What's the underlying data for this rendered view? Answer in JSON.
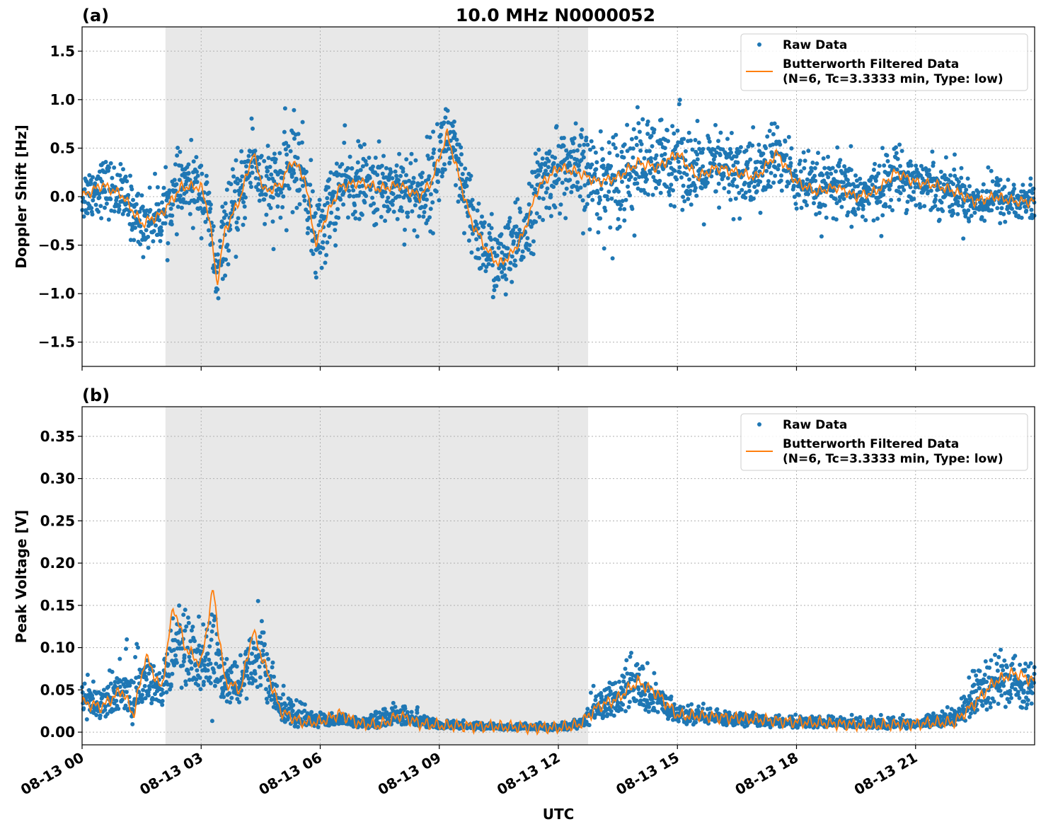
{
  "figure": {
    "title": "10.0 MHz N0000052",
    "xlabel": "UTC",
    "colors": {
      "raw": "#1f77b4",
      "filtered": "#ff7f0e",
      "shade": "#e8e8e8",
      "grid": "#b0b0b0"
    }
  },
  "chart_data": [
    {
      "type": "scatter",
      "panel_label": "(a)",
      "ylabel": "Doppler Shift [Hz]",
      "xlim": [
        0,
        24
      ],
      "ylim": [
        -1.75,
        1.75
      ],
      "x_ticks": [
        0,
        3,
        6,
        9,
        12,
        15,
        18,
        21
      ],
      "x_tick_labels": [
        "08-13 00",
        "08-13 03",
        "08-13 06",
        "08-13 09",
        "08-13 12",
        "08-13 15",
        "08-13 18",
        "08-13 21"
      ],
      "y_ticks": [
        -1.5,
        -1.0,
        -0.5,
        0.0,
        0.5,
        1.0,
        1.5
      ],
      "y_tick_labels": [
        "−1.5",
        "−1.0",
        "−0.5",
        "0.0",
        "0.5",
        "1.0",
        "1.5"
      ],
      "shaded_x": [
        2.1,
        12.75
      ],
      "grid": true,
      "legend": {
        "placement": "top-right",
        "raw_label": "Raw Data",
        "filtered_label_1": "Butterworth Filtered Data",
        "filtered_label_2": "(N=6, Tc=3.3333 min, Type: low)"
      },
      "series": [
        {
          "name": "Butterworth Filtered Data",
          "x": [
            0,
            0.5,
            1,
            1.5,
            2,
            2.5,
            3,
            3.2,
            3.4,
            3.6,
            4,
            4.3,
            4.6,
            5,
            5.3,
            5.6,
            5.9,
            6.1,
            6.5,
            7,
            7.5,
            8,
            8.5,
            8.8,
            9.2,
            9.5,
            9.8,
            10.2,
            10.5,
            10.8,
            11.1,
            11.5,
            12,
            12.5,
            13,
            13.5,
            14,
            14.5,
            15,
            15.5,
            16,
            16.5,
            17,
            17.5,
            18,
            18.5,
            19,
            19.5,
            20,
            20.5,
            21,
            21.5,
            22,
            22.5,
            23,
            23.5,
            24
          ],
          "y": [
            0.0,
            0.12,
            0.02,
            -0.28,
            -0.18,
            0.1,
            0.1,
            -0.2,
            -0.9,
            -0.35,
            0.0,
            0.45,
            0.05,
            0.12,
            0.38,
            0.2,
            -0.5,
            -0.25,
            0.1,
            0.15,
            0.08,
            0.12,
            0.0,
            0.15,
            0.65,
            0.2,
            -0.25,
            -0.55,
            -0.7,
            -0.6,
            -0.4,
            0.1,
            0.3,
            0.25,
            0.15,
            0.2,
            0.35,
            0.3,
            0.45,
            0.2,
            0.3,
            0.25,
            0.2,
            0.45,
            0.15,
            0.05,
            0.1,
            0.0,
            0.05,
            0.25,
            0.15,
            0.12,
            0.05,
            -0.05,
            0.0,
            -0.05,
            -0.05
          ]
        },
        {
          "name": "Raw Data",
          "spread_envelope_x": [
            0,
            2,
            3,
            4,
            5,
            6,
            7,
            8,
            9,
            10,
            11,
            12,
            13,
            14,
            15,
            16,
            17,
            18,
            19,
            20,
            21,
            22,
            23,
            24
          ],
          "spread_envelope_halfwidth": [
            0.3,
            0.35,
            0.4,
            0.45,
            0.5,
            0.5,
            0.4,
            0.45,
            0.5,
            0.45,
            0.45,
            0.45,
            0.55,
            0.55,
            0.5,
            0.45,
            0.45,
            0.35,
            0.35,
            0.35,
            0.3,
            0.3,
            0.25,
            0.25
          ]
        }
      ]
    },
    {
      "type": "scatter",
      "panel_label": "(b)",
      "ylabel": "Peak Voltage [V]",
      "xlim": [
        0,
        24
      ],
      "ylim": [
        -0.015,
        0.385
      ],
      "x_ticks": [
        0,
        3,
        6,
        9,
        12,
        15,
        18,
        21
      ],
      "x_tick_labels": [
        "08-13 00",
        "08-13 03",
        "08-13 06",
        "08-13 09",
        "08-13 12",
        "08-13 15",
        "08-13 18",
        "08-13 21"
      ],
      "y_ticks": [
        0.0,
        0.05,
        0.1,
        0.15,
        0.2,
        0.25,
        0.3,
        0.35
      ],
      "y_tick_labels": [
        "0.00",
        "0.05",
        "0.10",
        "0.15",
        "0.20",
        "0.25",
        "0.30",
        "0.35"
      ],
      "shaded_x": [
        2.1,
        12.75
      ],
      "grid": true,
      "legend": {
        "placement": "top-right",
        "raw_label": "Raw Data",
        "filtered_label_1": "Butterworth Filtered Data",
        "filtered_label_2": "(N=6, Tc=3.3333 min, Type: low)"
      },
      "series": [
        {
          "name": "Butterworth Filtered Data",
          "x": [
            0,
            0.5,
            1,
            1.3,
            1.6,
            2,
            2.3,
            2.6,
            3,
            3.3,
            3.6,
            4,
            4.3,
            4.6,
            5,
            5.5,
            6,
            6.5,
            7,
            7.5,
            8,
            8.5,
            9,
            10,
            11,
            12,
            12.5,
            13,
            13.5,
            14,
            14.5,
            15,
            16,
            17,
            18,
            19,
            20,
            21,
            22,
            22.5,
            23,
            23.5,
            24
          ],
          "y": [
            0.035,
            0.03,
            0.05,
            0.02,
            0.09,
            0.05,
            0.15,
            0.1,
            0.08,
            0.17,
            0.06,
            0.05,
            0.12,
            0.08,
            0.025,
            0.012,
            0.012,
            0.022,
            0.01,
            0.008,
            0.02,
            0.01,
            0.008,
            0.007,
            0.006,
            0.005,
            0.008,
            0.03,
            0.04,
            0.06,
            0.045,
            0.02,
            0.018,
            0.015,
            0.012,
            0.01,
            0.008,
            0.01,
            0.012,
            0.035,
            0.06,
            0.07,
            0.06
          ]
        },
        {
          "name": "Raw Data",
          "spread_envelope_x": [
            0,
            1,
            2,
            2.5,
            3,
            3.5,
            4,
            4.5,
            5,
            6,
            7,
            8,
            9,
            10,
            11,
            12,
            12.5,
            13,
            14,
            15,
            16,
            17,
            18,
            19,
            20,
            21,
            22,
            22.5,
            23,
            24
          ],
          "spread_envelope_upper": [
            0.06,
            0.1,
            0.08,
            0.2,
            0.14,
            0.1,
            0.1,
            0.18,
            0.05,
            0.025,
            0.02,
            0.04,
            0.015,
            0.012,
            0.01,
            0.01,
            0.015,
            0.06,
            0.1,
            0.04,
            0.03,
            0.025,
            0.02,
            0.02,
            0.018,
            0.02,
            0.03,
            0.08,
            0.12,
            0.1
          ]
        }
      ]
    }
  ]
}
